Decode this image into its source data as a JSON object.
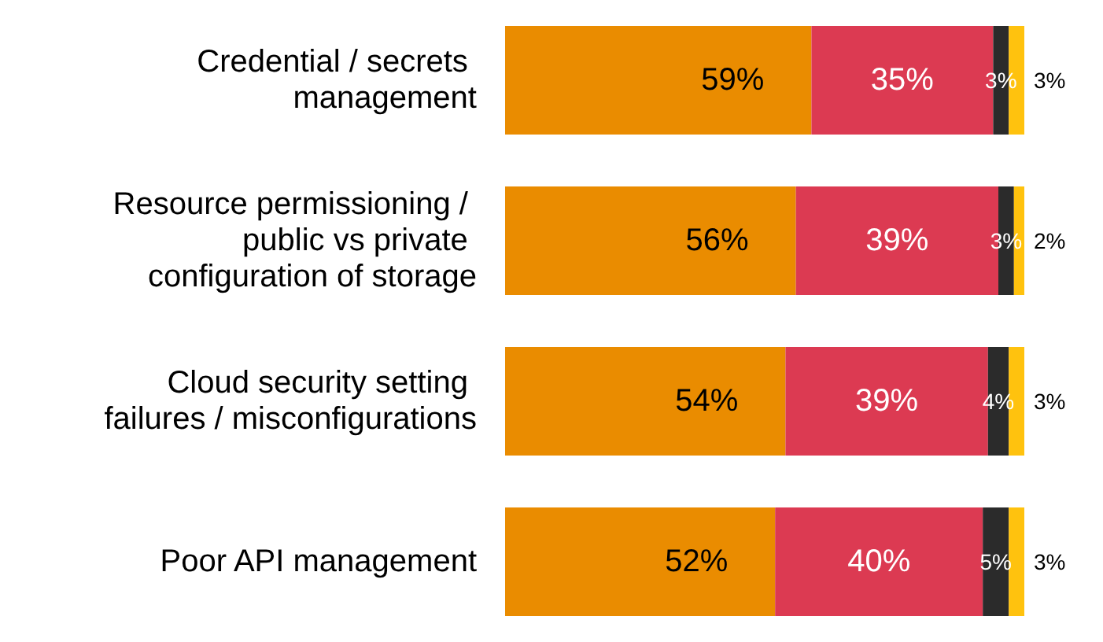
{
  "chart_data": {
    "type": "bar",
    "orientation": "horizontal",
    "stacked": true,
    "data_labels": true,
    "tick_labels": "y",
    "xlim": [
      0,
      100
    ],
    "categories": [
      "Credential / secrets management",
      "Resource permissioning / public vs private configuration of storage",
      "Cloud security setting failures / misconfigurations",
      "Poor API management"
    ],
    "series": [
      {
        "color": "#ea8c00",
        "values": [
          59,
          56,
          54,
          52
        ],
        "value_labels": [
          "59%",
          "56%",
          "54%",
          "52%"
        ]
      },
      {
        "color": "#dc3a52",
        "values": [
          35,
          39,
          39,
          40
        ],
        "value_labels": [
          "35%",
          "39%",
          "39%",
          "40%"
        ]
      },
      {
        "color": "#2b2b2b",
        "values": [
          3,
          3,
          4,
          5
        ],
        "value_labels": [
          "3%",
          "3%",
          "4%",
          "5%"
        ]
      },
      {
        "color": "#ffc20e",
        "values": [
          3,
          2,
          3,
          3
        ],
        "value_labels": [
          "3%",
          "2%",
          "3%",
          "3%"
        ]
      }
    ]
  }
}
